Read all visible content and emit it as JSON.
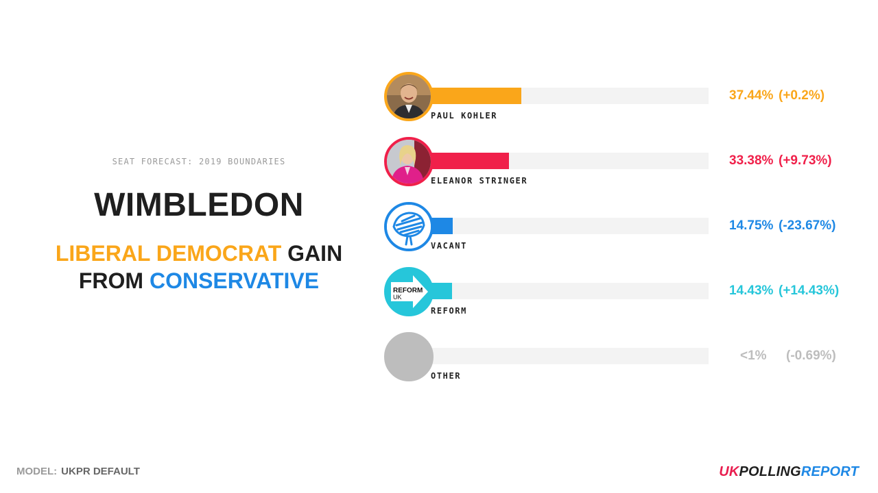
{
  "header": {
    "subtitle": "SEAT FORECAST: 2019 BOUNDARIES",
    "seat": "WIMBLEDON",
    "result": {
      "winner": "LIBERAL DEMOCRAT",
      "gain": " GAIN",
      "from": "FROM ",
      "loser": "CONSERVATIVE"
    }
  },
  "chart_data": {
    "type": "bar",
    "orientation": "horizontal",
    "categories": [
      "PAUL KOHLER",
      "ELEANOR STRINGER",
      "VACANT",
      "REFORM",
      "OTHER"
    ],
    "values": [
      37.44,
      33.38,
      14.75,
      14.43,
      0.5
    ],
    "xlim": [
      0,
      100
    ],
    "series": [
      {
        "values": [
          37.44,
          33.38,
          14.75,
          14.43,
          0.5
        ]
      }
    ],
    "rows": [
      {
        "name": "PAUL KOHLER",
        "value": 37.44,
        "pct_label": "37.44%",
        "change_label": "(+0.2%)",
        "color": "#FAA61A",
        "icon": "candidate-photo-icon"
      },
      {
        "name": "ELEANOR STRINGER",
        "value": 33.38,
        "pct_label": "33.38%",
        "change_label": "(+9.73%)",
        "color": "#F0204A",
        "icon": "candidate-photo-icon"
      },
      {
        "name": "VACANT",
        "value": 14.75,
        "pct_label": "14.75%",
        "change_label": "(-23.67%)",
        "color": "#1E88E5",
        "icon": "conservative-tree-icon"
      },
      {
        "name": "REFORM",
        "value": 14.43,
        "pct_label": "14.43%",
        "change_label": "(+14.43%)",
        "color": "#26C6DA",
        "icon": "reform-uk-arrow-icon"
      },
      {
        "name": "OTHER",
        "value": 0.5,
        "pct_label": "<1%",
        "change_label": "(-0.69%)",
        "color": "#BDBDBD",
        "icon": "grey-circle-icon"
      }
    ]
  },
  "footer": {
    "model_label": "MODEL:",
    "model_value": "UKPR DEFAULT",
    "logo": {
      "uk": "UK",
      "polling": "POLLING",
      "report": "REPORT"
    }
  },
  "colors": {
    "libdem": "#FAA61A",
    "labour": "#F0204A",
    "conservative": "#1E88E5",
    "reform": "#26C6DA",
    "other": "#BDBDBD",
    "track": "#F3F3F3"
  }
}
